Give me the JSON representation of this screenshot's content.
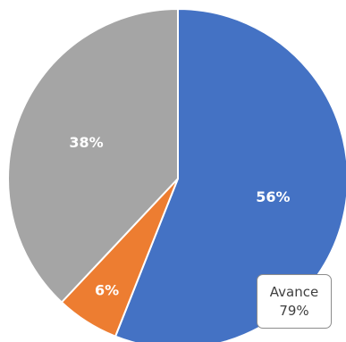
{
  "chart_data": {
    "type": "pie",
    "categories": [
      "",
      "",
      ""
    ],
    "values": [
      56,
      6,
      38
    ],
    "data_labels": [
      "56%",
      "6%",
      "38%"
    ],
    "colors": [
      "#4472c4",
      "#ed7d31",
      "#a5a5a5"
    ],
    "start_angle_deg": 0,
    "direction": "clockwise",
    "legend": "none",
    "annotation": {
      "name": "Avance",
      "value": "79%"
    }
  }
}
